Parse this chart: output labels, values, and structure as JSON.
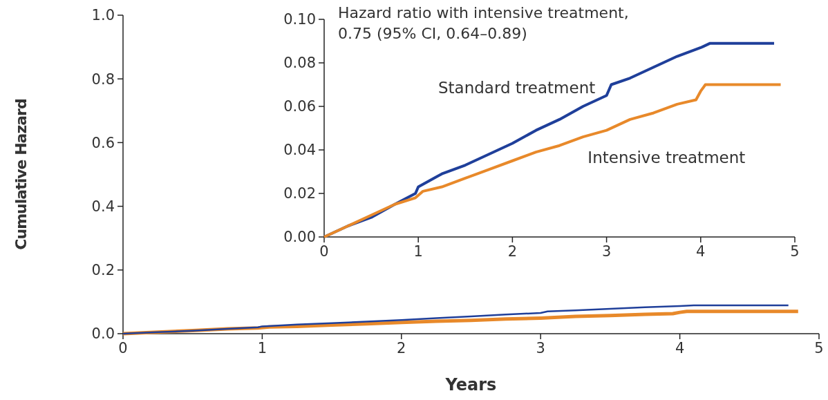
{
  "chart_data": [
    {
      "type": "line",
      "xlabel": "Years",
      "ylabel": "Cumulative Hazard",
      "xlim": [
        0,
        5
      ],
      "ylim": [
        0,
        1
      ],
      "xticks": [
        0,
        1,
        2,
        3,
        4,
        5
      ],
      "yticks": [
        {
          "value": 0,
          "label": "0.0"
        },
        {
          "value": 0.2,
          "label": "0.2"
        },
        {
          "value": 0.4,
          "label": "0.4"
        },
        {
          "value": 0.6,
          "label": "0.6"
        },
        {
          "value": 0.8,
          "label": "0.8"
        },
        {
          "value": 1,
          "label": "1.0"
        }
      ],
      "series": [
        {
          "color": "#1f3f9a",
          "x": [
            0,
            0.25,
            0.5,
            0.75,
            0.97,
            1.0,
            1.25,
            1.5,
            1.75,
            2.0,
            2.25,
            2.5,
            2.75,
            3.0,
            3.05,
            3.25,
            3.5,
            3.75,
            4.0,
            4.1,
            4.78
          ],
          "values": [
            0,
            0.005,
            0.009,
            0.015,
            0.02,
            0.023,
            0.029,
            0.033,
            0.038,
            0.043,
            0.049,
            0.054,
            0.06,
            0.065,
            0.07,
            0.073,
            0.078,
            0.083,
            0.087,
            0.089,
            0.089
          ]
        },
        {
          "color": "#e8892a",
          "x": [
            0,
            0.25,
            0.5,
            0.75,
            0.97,
            1.05,
            1.25,
            1.5,
            1.75,
            2.0,
            2.25,
            2.5,
            2.75,
            3.0,
            3.25,
            3.5,
            3.75,
            3.95,
            4.0,
            4.05,
            4.15,
            4.85
          ],
          "values": [
            0,
            0.005,
            0.01,
            0.015,
            0.018,
            0.021,
            0.023,
            0.027,
            0.031,
            0.035,
            0.039,
            0.042,
            0.046,
            0.049,
            0.054,
            0.057,
            0.061,
            0.063,
            0.067,
            0.07,
            0.07,
            0.07
          ]
        }
      ]
    },
    {
      "type": "line",
      "annotations": [
        "Hazard ratio with intensive treatment,",
        "0.75 (95% CI, 0.64–0.89)"
      ],
      "xlim": [
        0,
        5
      ],
      "ylim": [
        0,
        0.1
      ],
      "xticks": [
        0,
        1,
        2,
        3,
        4,
        5
      ],
      "yticks": [
        {
          "value": 0,
          "label": "0.00"
        },
        {
          "value": 0.02,
          "label": "0.02"
        },
        {
          "value": 0.04,
          "label": "0.04"
        },
        {
          "value": 0.06,
          "label": "0.06"
        },
        {
          "value": 0.08,
          "label": "0.08"
        },
        {
          "value": 0.1,
          "label": "0.10"
        }
      ],
      "series": [
        {
          "name": "Standard treatment",
          "color": "#1f3f9a",
          "x": [
            0,
            0.25,
            0.5,
            0.75,
            0.97,
            1.0,
            1.25,
            1.5,
            1.75,
            2.0,
            2.25,
            2.5,
            2.75,
            3.0,
            3.05,
            3.25,
            3.5,
            3.75,
            4.0,
            4.1,
            4.78
          ],
          "values": [
            0,
            0.005,
            0.009,
            0.015,
            0.02,
            0.023,
            0.029,
            0.033,
            0.038,
            0.043,
            0.049,
            0.054,
            0.06,
            0.065,
            0.07,
            0.073,
            0.078,
            0.083,
            0.087,
            0.089,
            0.089
          ]
        },
        {
          "name": "Intensive treatment",
          "color": "#e8892a",
          "x": [
            0,
            0.25,
            0.5,
            0.75,
            0.97,
            1.05,
            1.25,
            1.5,
            1.75,
            2.0,
            2.25,
            2.5,
            2.75,
            3.0,
            3.25,
            3.5,
            3.75,
            3.95,
            4.0,
            4.05,
            4.15,
            4.85
          ],
          "values": [
            0,
            0.005,
            0.01,
            0.015,
            0.018,
            0.021,
            0.023,
            0.027,
            0.031,
            0.035,
            0.039,
            0.042,
            0.046,
            0.049,
            0.054,
            0.057,
            0.061,
            0.063,
            0.067,
            0.07,
            0.07,
            0.07
          ]
        }
      ]
    }
  ]
}
